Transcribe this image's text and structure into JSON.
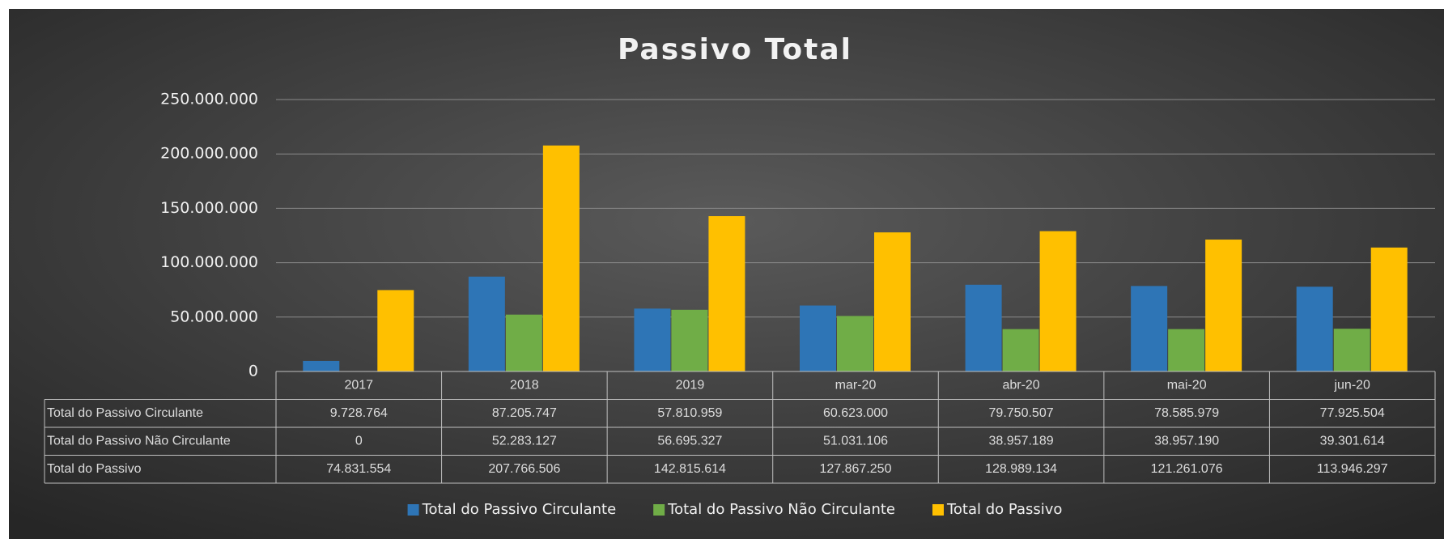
{
  "chart_data": {
    "type": "bar",
    "title": "Passivo Total",
    "categories": [
      "2017",
      "2018",
      "2019",
      "mar-20",
      "abr-20",
      "mai-20",
      "jun-20"
    ],
    "series": [
      {
        "name": "Total do Passivo Circulante",
        "color": "#2e75b6",
        "values": [
          9728764,
          87205747,
          57810959,
          60623000,
          79750507,
          78585979,
          77925504
        ],
        "value_labels": [
          "9.728.764",
          "87.205.747",
          "57.810.959",
          "60.623.000",
          "79.750.507",
          "78.585.979",
          "77.925.504"
        ]
      },
      {
        "name": "Total do Passivo Não Circulante",
        "color": "#70ad47",
        "values": [
          0,
          52283127,
          56695327,
          51031106,
          38957189,
          38957190,
          39301614
        ],
        "value_labels": [
          "0",
          "52.283.127",
          "56.695.327",
          "51.031.106",
          "38.957.189",
          "38.957.190",
          "39.301.614"
        ]
      },
      {
        "name": "Total do Passivo",
        "color": "#ffc000",
        "values": [
          74831554,
          207766506,
          142815614,
          127867250,
          128989134,
          121261076,
          113946297
        ],
        "value_labels": [
          "74.831.554",
          "207.766.506",
          "142.815.614",
          "127.867.250",
          "128.989.134",
          "121.261.076",
          "113.946.297"
        ]
      }
    ],
    "ylim": [
      0,
      250000000
    ],
    "yticks": [
      0,
      {
        "value": 50000000,
        "label": "50.000.000"
      },
      {
        "value": 100000000,
        "label": "100.000.000"
      },
      {
        "value": 150000000,
        "label": "150.000.000"
      },
      {
        "value": 200000000,
        "label": "200.000.000"
      },
      {
        "value": 250000000,
        "label": "250.000.000"
      }
    ],
    "grid": true,
    "legend": "bottom"
  }
}
